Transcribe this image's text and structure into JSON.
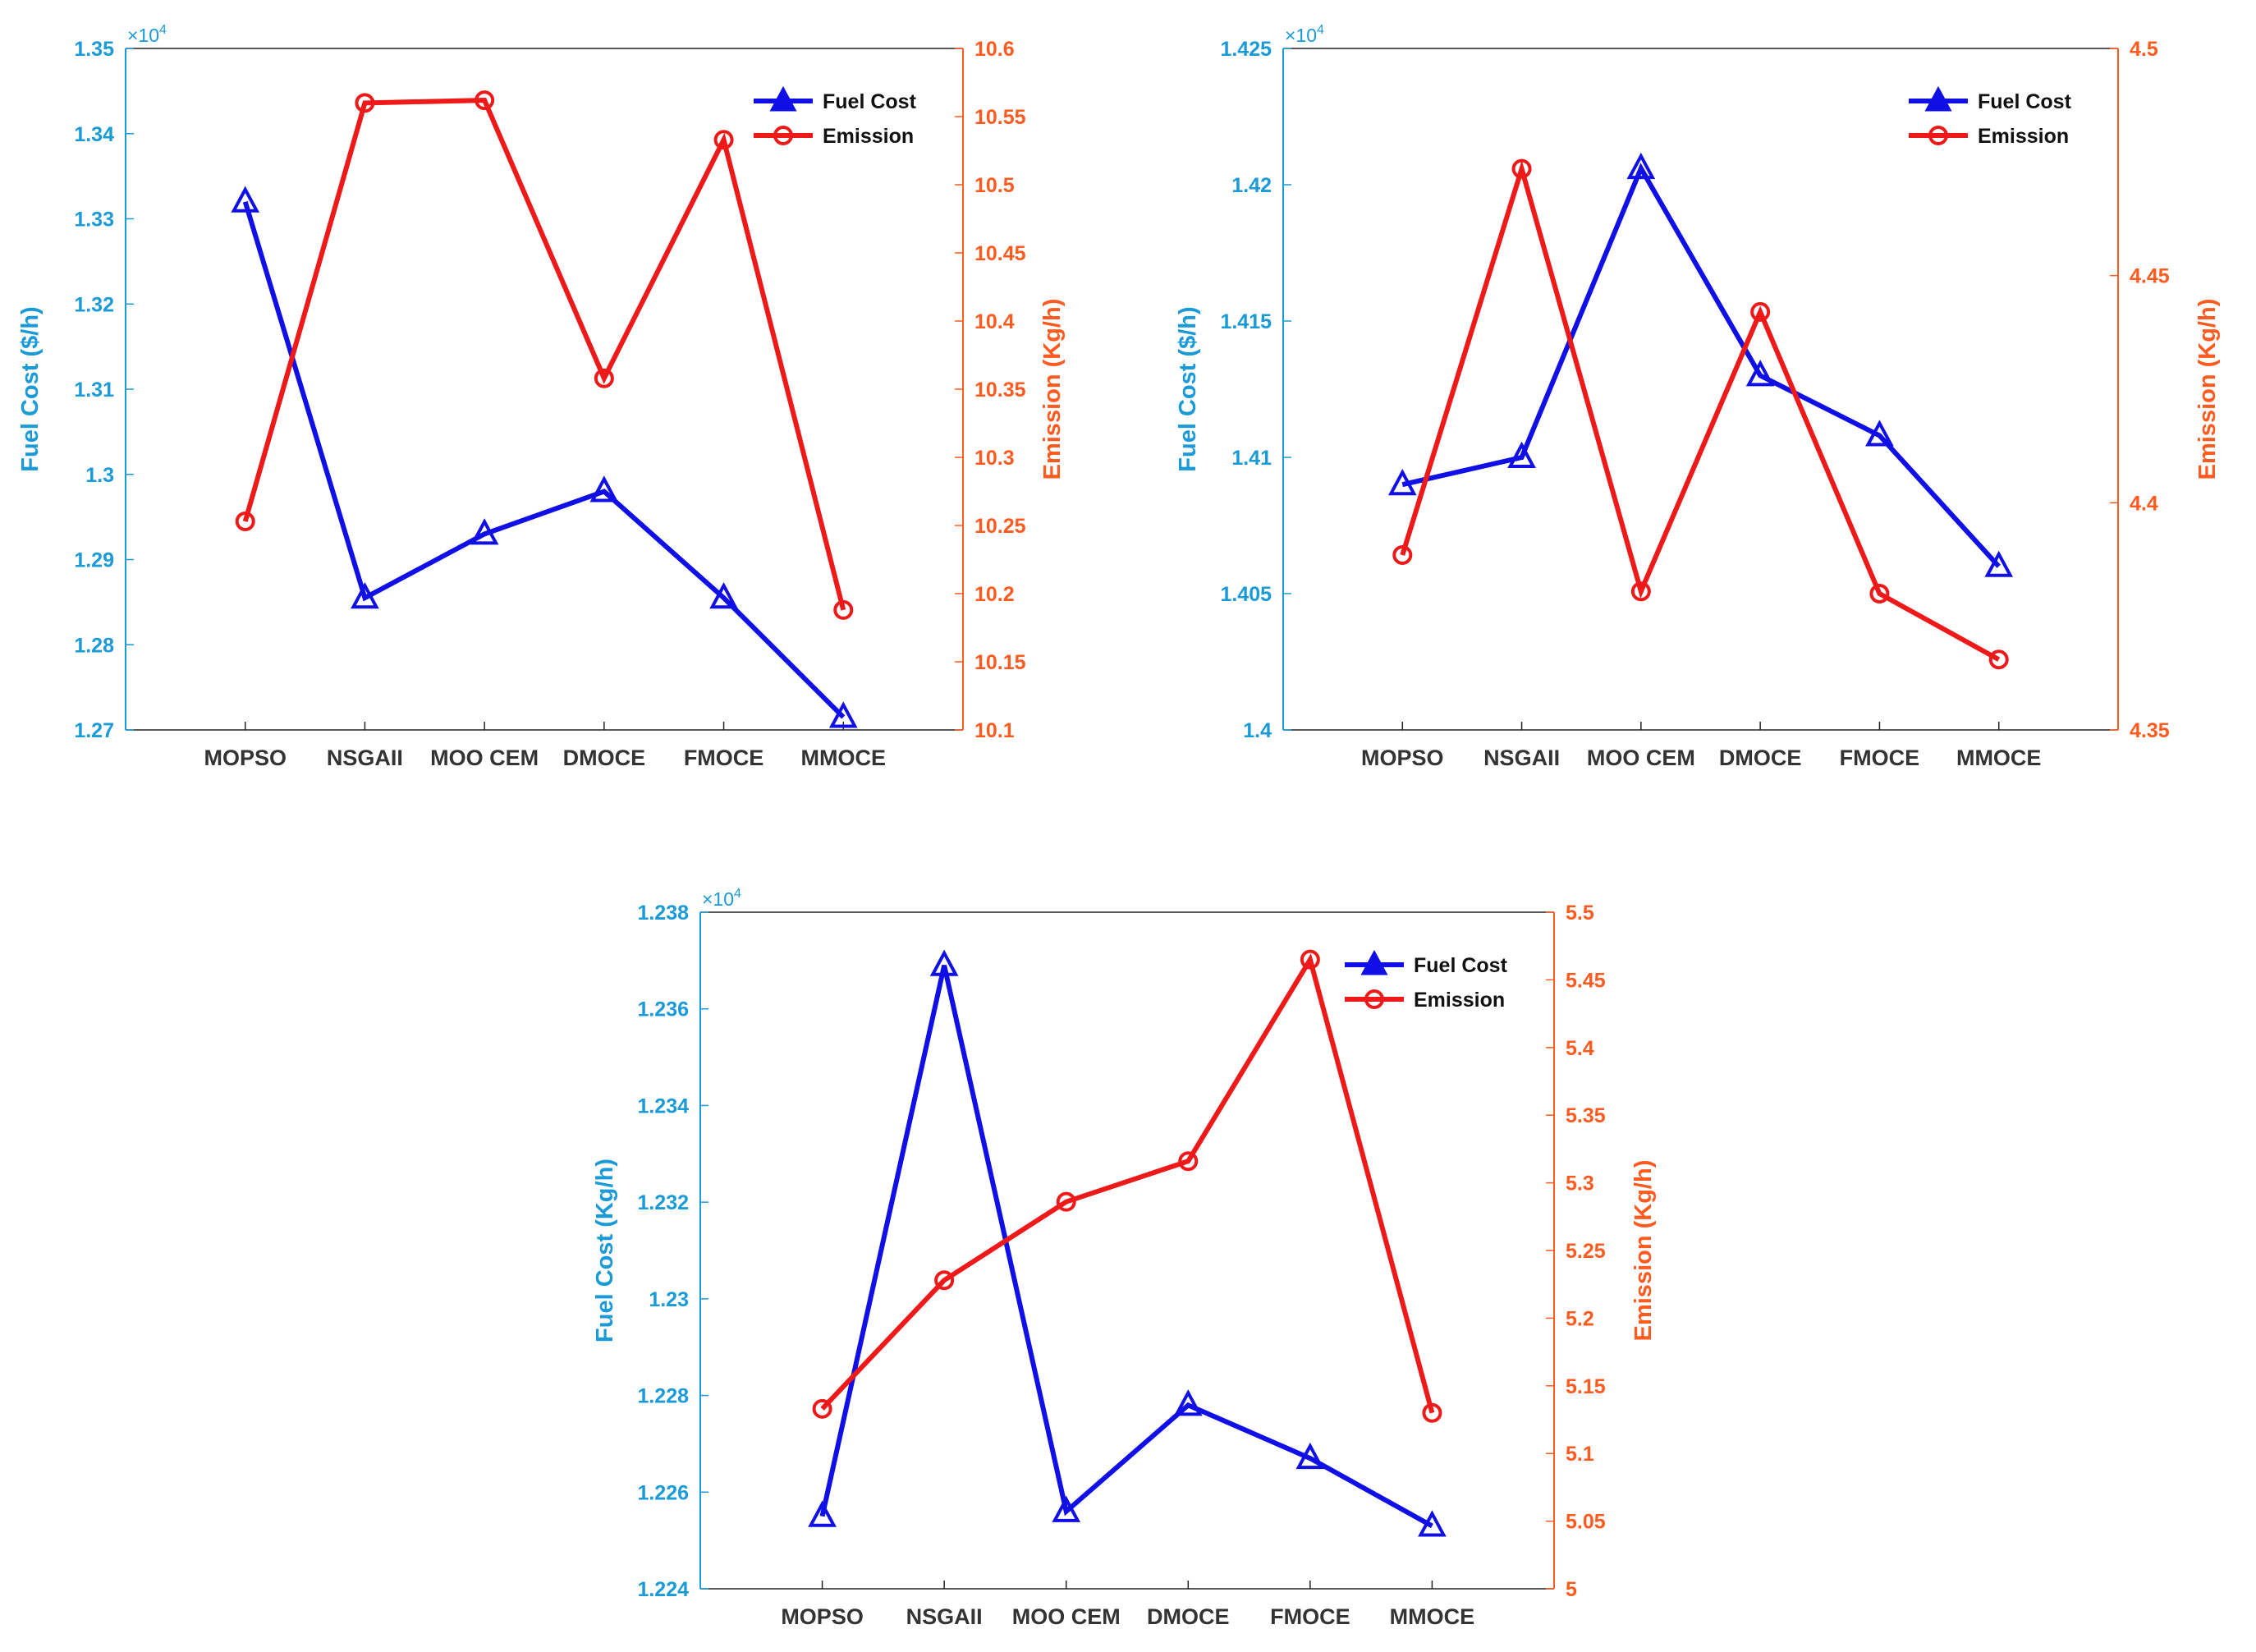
{
  "colors": {
    "left_axis": "#1a9ad6",
    "right_axis": "#ff5a1f",
    "fuel_series": "#1010e6",
    "emission_series": "#ee1a1a"
  },
  "chart_data": [
    {
      "type": "line",
      "categories": [
        "MOPSO",
        "NSGAII",
        "MOO CEM",
        "DMOCE",
        "FMOCE",
        "MMOCE"
      ],
      "series": [
        {
          "name": "Fuel Cost",
          "axis": "left",
          "marker": "triangle",
          "values": [
            13320,
            12855,
            12930,
            12980,
            12855,
            12715
          ]
        },
        {
          "name": "Emission",
          "axis": "right",
          "marker": "circle",
          "values": [
            10.253,
            10.56,
            10.562,
            10.358,
            10.533,
            10.188
          ]
        }
      ],
      "ylabel_left": "Fuel Cost ($/h)",
      "ylabel_right": "Emission (Kg/h)",
      "ylim_left": [
        1.27,
        1.35
      ],
      "ylim_right": [
        10.1,
        10.6
      ],
      "yticks_left": [
        "1.27",
        "1.28",
        "1.29",
        "1.3",
        "1.31",
        "1.32",
        "1.33",
        "1.34",
        "1.35"
      ],
      "yticks_right": [
        "10.1",
        "10.15",
        "10.2",
        "10.25",
        "10.3",
        "10.35",
        "10.4",
        "10.45",
        "10.5",
        "10.55",
        "10.6"
      ],
      "multiplier": {
        "base": "×10",
        "exponent": "4"
      },
      "legend": [
        "Fuel Cost",
        "Emission"
      ],
      "legend_position": "top-right"
    },
    {
      "type": "line",
      "categories": [
        "MOPSO",
        "NSGAII",
        "MOO CEM",
        "DMOCE",
        "FMOCE",
        "MMOCE"
      ],
      "series": [
        {
          "name": "Fuel Cost",
          "axis": "left",
          "marker": "triangle",
          "values": [
            14090,
            14100,
            14206,
            14130,
            14108,
            14060
          ]
        },
        {
          "name": "Emission",
          "axis": "right",
          "marker": "circle",
          "values": [
            4.3885,
            4.4735,
            4.3805,
            4.442,
            4.38,
            4.3655
          ]
        }
      ],
      "ylabel_left": "Fuel Cost ($/h)",
      "ylabel_right": "Emission (Kg/h)",
      "ylim_left": [
        1.4,
        1.425
      ],
      "ylim_right": [
        4.35,
        4.5
      ],
      "yticks_left": [
        "1.4",
        "1.405",
        "1.41",
        "1.415",
        "1.42",
        "1.425"
      ],
      "yticks_right": [
        "4.35",
        "4.4",
        "4.45",
        "4.5"
      ],
      "multiplier": {
        "base": "×10",
        "exponent": "4"
      },
      "legend": [
        "Fuel Cost",
        "Emission"
      ],
      "legend_position": "top-right"
    },
    {
      "type": "line",
      "categories": [
        "MOPSO",
        "NSGAII",
        "MOO CEM",
        "DMOCE",
        "FMOCE",
        "MMOCE"
      ],
      "series": [
        {
          "name": "Fuel Cost",
          "axis": "left",
          "marker": "triangle",
          "values": [
            12255,
            12369,
            12256,
            12278,
            12267,
            12253
          ]
        },
        {
          "name": "Emission",
          "axis": "right",
          "marker": "circle",
          "values": [
            5.133,
            5.228,
            5.286,
            5.316,
            5.465,
            5.13
          ]
        }
      ],
      "ylabel_left": "Fuel Cost (Kg/h)",
      "ylabel_right": "Emission (Kg/h)",
      "ylim_left": [
        1.224,
        1.238
      ],
      "ylim_right": [
        5.0,
        5.5
      ],
      "yticks_left": [
        "1.224",
        "1.226",
        "1.228",
        "1.23",
        "1.232",
        "1.234",
        "1.236",
        "1.238"
      ],
      "yticks_right": [
        "5",
        "5.05",
        "5.1",
        "5.15",
        "5.2",
        "5.25",
        "5.3",
        "5.35",
        "5.4",
        "5.45",
        "5.5"
      ],
      "multiplier": {
        "base": "×10",
        "exponent": "4"
      },
      "legend": [
        "Fuel Cost",
        "Emission"
      ],
      "legend_position": "top-right"
    }
  ]
}
